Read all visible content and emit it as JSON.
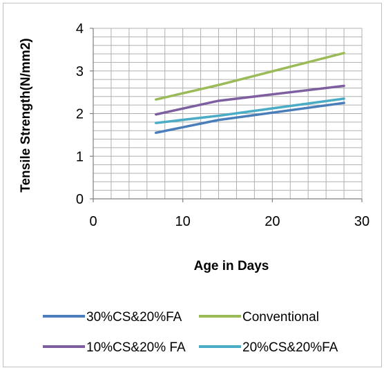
{
  "chart_data": {
    "type": "line",
    "title": "",
    "xlabel": "Age in Days",
    "ylabel": "Tensile Strength(N/mm2)",
    "xlim": [
      0,
      30
    ],
    "ylim": [
      0,
      4
    ],
    "x_ticks": [
      0,
      10,
      20,
      30
    ],
    "y_ticks": [
      0,
      1,
      2,
      3,
      4
    ],
    "x_minor_step": 2,
    "y_minor_step": 0.2,
    "grid": true,
    "legend_position": "bottom",
    "series": [
      {
        "name": "30%CS&20%FA",
        "color": "#4a7ebb",
        "x": [
          7,
          14,
          28
        ],
        "y": [
          1.55,
          1.85,
          2.25
        ]
      },
      {
        "name": "Conventional",
        "color": "#9bbb59",
        "x": [
          7,
          14,
          28
        ],
        "y": [
          2.33,
          2.67,
          3.42
        ]
      },
      {
        "name": "10%CS&20% FA",
        "color": "#7d5fa0",
        "x": [
          7,
          14,
          28
        ],
        "y": [
          1.98,
          2.3,
          2.65
        ]
      },
      {
        "name": "20%CS&20%FA",
        "color": "#4bacc6",
        "x": [
          7,
          14,
          28
        ],
        "y": [
          1.78,
          1.95,
          2.35
        ]
      }
    ]
  }
}
